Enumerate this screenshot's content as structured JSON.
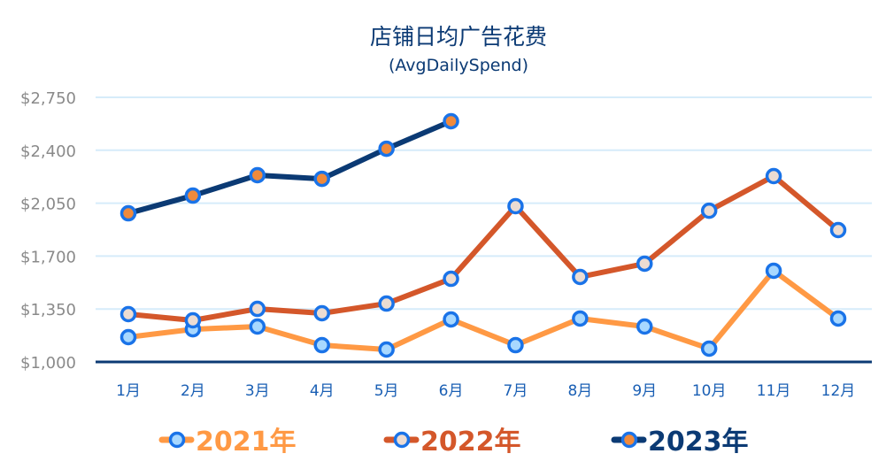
{
  "chart_data": {
    "type": "line",
    "title": "店铺日均广告花费",
    "subtitle": "(AvgDailySpend)",
    "xlabel": "",
    "ylabel": "",
    "categories": [
      "1月",
      "2月",
      "3月",
      "4月",
      "5月",
      "6月",
      "7月",
      "8月",
      "9月",
      "10月",
      "11月",
      "12月"
    ],
    "ylim": [
      1000,
      2750
    ],
    "yticks": [
      1000,
      1350,
      1700,
      2050,
      2400,
      2750
    ],
    "ytick_labels": [
      "$1,000",
      "$1,350",
      "$1,700",
      "$2,050",
      "$2,400",
      "$2,750"
    ],
    "grid": true,
    "legend_position": "bottom",
    "marker_ring_color": "#1a73e8",
    "series": [
      {
        "name": "2021年",
        "color": "#ff9944",
        "marker_fill": "#a8d8ff",
        "values": [
          1164,
          1216,
          1234,
          1111,
          1082,
          1281,
          1111,
          1287,
          1234,
          1088,
          1603,
          1287
        ]
      },
      {
        "name": "2022年",
        "color": "#d4572a",
        "marker_fill": "#ecdcd2",
        "values": [
          1316,
          1275,
          1351,
          1322,
          1386,
          1550,
          2030,
          1562,
          1650,
          2000,
          2229,
          1872
        ]
      },
      {
        "name": "2023年",
        "color": "#0b3a74",
        "marker_fill": "#f08a3c",
        "values": [
          1983,
          2100,
          2235,
          2211,
          2410,
          2592,
          null,
          null,
          null,
          null,
          null,
          null
        ]
      }
    ]
  }
}
